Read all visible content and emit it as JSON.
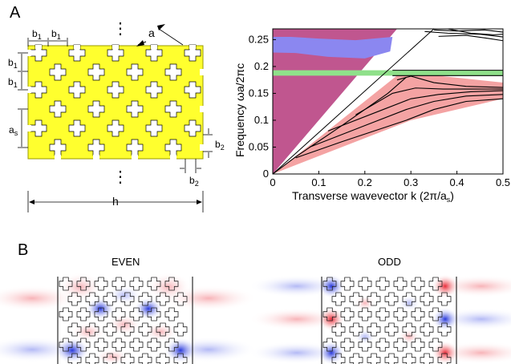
{
  "panel_a": {
    "letter": "A",
    "schematic": {
      "labels": {
        "b": "b",
        "a": "a",
        "a_s": "a",
        "h": "h",
        "b2": "b"
      },
      "subscripts": {
        "one": "1",
        "s": "s",
        "two": "2"
      },
      "ellipsis": "⋮"
    },
    "chart_data": {
      "type": "area",
      "title": "",
      "xlabel": "Transverse wavevector k (2π/a",
      "xlabel_sub": "s",
      "xlabel_tail": ")",
      "ylabel": "Frequency ωa/2πc",
      "xlim": [
        0,
        0.5
      ],
      "ylim": [
        0,
        0.27
      ],
      "x_ticks": [
        "0",
        "0.1",
        "0.2",
        "0.3",
        "0.4",
        "0.5"
      ],
      "y_ticks": [
        "0",
        "0.05",
        "0.1",
        "0.15",
        "0.2",
        "0.25"
      ],
      "grid": false,
      "regions": [
        {
          "name": "light cone",
          "color": "#c0568f",
          "x": [
            0,
            0.27,
            0.5,
            0.5,
            0
          ],
          "y": [
            0,
            0.27,
            0.27,
            0.27,
            0.27
          ]
        },
        {
          "name": "blue band",
          "color": "#8b87f0",
          "x": [
            0,
            0.04,
            0.1,
            0.18,
            0.26,
            0.255,
            0.2,
            0.12,
            0.05,
            0
          ],
          "y": [
            0.255,
            0.255,
            0.252,
            0.249,
            0.255,
            0.228,
            0.215,
            0.218,
            0.225,
            0.226
          ]
        },
        {
          "name": "guided band",
          "color": "#f4a3a3",
          "x": [
            0,
            0.06,
            0.28,
            0.5,
            0.5,
            0.3,
            0
          ],
          "y": [
            0,
            0.04,
            0.19,
            0.17,
            0.14,
            0.1,
            0
          ]
        },
        {
          "name": "green gap",
          "color": "#8fe08a",
          "x": [
            0,
            0.5,
            0.5,
            0
          ],
          "y": [
            0.183,
            0.183,
            0.193,
            0.193
          ]
        }
      ],
      "curves": [
        {
          "x": [
            0,
            0.05,
            0.15,
            0.25,
            0.29
          ],
          "y": [
            0,
            0.032,
            0.09,
            0.15,
            0.18
          ]
        },
        {
          "x": [
            0.05,
            0.15,
            0.29,
            0.35,
            0.42,
            0.5
          ],
          "y": [
            0.03,
            0.06,
            0.1,
            0.12,
            0.135,
            0.14
          ]
        },
        {
          "x": [
            0.08,
            0.2,
            0.29,
            0.35,
            0.42,
            0.5
          ],
          "y": [
            0.05,
            0.09,
            0.12,
            0.135,
            0.145,
            0.148
          ]
        },
        {
          "x": [
            0.12,
            0.24,
            0.3,
            0.36,
            0.43,
            0.5
          ],
          "y": [
            0.08,
            0.12,
            0.14,
            0.148,
            0.153,
            0.155
          ]
        },
        {
          "x": [
            0.18,
            0.26,
            0.31,
            0.37,
            0.44,
            0.5
          ],
          "y": [
            0.11,
            0.15,
            0.16,
            0.158,
            0.158,
            0.158
          ]
        },
        {
          "x": [
            0.27,
            0.3,
            0.35,
            0.42,
            0.5
          ],
          "y": [
            0.175,
            0.182,
            0.17,
            0.163,
            0.161
          ]
        },
        {
          "x": [
            0.26,
            0.5
          ],
          "y": [
            0.193,
            0.193
          ]
        },
        {
          "x": [
            0.26,
            0.5
          ],
          "y": [
            0.183,
            0.183
          ]
        },
        {
          "x": [
            0.33,
            0.38,
            0.45,
            0.5
          ],
          "y": [
            0.265,
            0.262,
            0.26,
            0.255
          ]
        },
        {
          "x": [
            0.35,
            0.4,
            0.46,
            0.5
          ],
          "y": [
            0.268,
            0.266,
            0.268,
            0.264
          ]
        },
        {
          "x": [
            0.36,
            0.42,
            0.47,
            0.5
          ],
          "y": [
            0.256,
            0.258,
            0.252,
            0.248
          ]
        },
        {
          "x": [
            0.38,
            0.43,
            0.48,
            0.5
          ],
          "y": [
            0.27,
            0.262,
            0.259,
            0.26
          ]
        }
      ],
      "light_line": {
        "x": [
          0,
          0.35
        ],
        "y": [
          0,
          0.27
        ]
      }
    }
  },
  "panel_b": {
    "letter": "B",
    "even_title": "EVEN",
    "odd_title": "ODD"
  },
  "colors": {
    "yellow": "#ffff2e",
    "yellow_stroke": "#b5b500",
    "red": "#e8202f",
    "blue": "#1c2dd8"
  }
}
